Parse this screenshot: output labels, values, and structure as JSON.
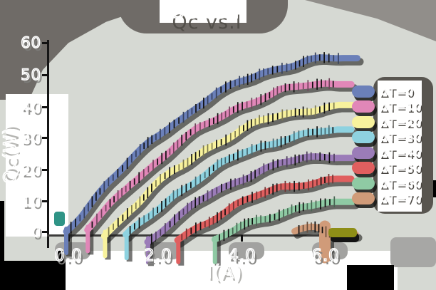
{
  "title": "Qc vs.I",
  "axes": {
    "xlabel": "I(A)",
    "ylabel": "Qc(W)",
    "x_tick_labels": [
      "0.0",
      "2.0",
      "4.0",
      "6.0"
    ],
    "y_tick_labels": [
      "60",
      "50",
      "40",
      "30",
      "20",
      "10",
      "0"
    ]
  },
  "colors": {
    "background": "#d6d9d3",
    "shadow_dark": "#6f6b67",
    "shadow_mid": "#a2a2a0",
    "artifact_olive": "#8e8e17",
    "artifact_teal": "#2f9486"
  },
  "chart_data": {
    "type": "line",
    "title": "Qc vs.I",
    "xlabel": "I(A)",
    "ylabel": "Qc(W)",
    "xlim": [
      0,
      6.6
    ],
    "ylim": [
      0,
      60
    ],
    "x_ticks": [
      0.0,
      2.0,
      4.0,
      6.0
    ],
    "y_ticks": [
      0,
      10,
      20,
      30,
      40,
      50,
      60
    ],
    "grid": false,
    "legend_position": "right",
    "style": "xkcd-sketch, thick strokes with error ticks and drop shadows",
    "series": [
      {
        "name": "ΔT=0",
        "color": "#6b80b9",
        "points": [
          [
            0,
            0
          ],
          [
            0.5,
            8.3
          ],
          [
            1,
            15.9
          ],
          [
            1.5,
            22.8
          ],
          [
            2,
            29.0
          ],
          [
            2.5,
            34.6
          ],
          [
            3,
            39.5
          ],
          [
            3.5,
            43.7
          ],
          [
            4,
            47.3
          ],
          [
            4.5,
            50.2
          ],
          [
            5,
            52.4
          ],
          [
            5.5,
            53.9
          ],
          [
            6,
            54.8
          ],
          [
            6.4,
            55.1
          ]
        ]
      },
      {
        "name": "ΔT=10",
        "color": "#e187b8",
        "points": [
          [
            0.5,
            0.6
          ],
          [
            1,
            8.2
          ],
          [
            1.5,
            15.1
          ],
          [
            2,
            21.3
          ],
          [
            2.5,
            26.9
          ],
          [
            3,
            31.8
          ],
          [
            3.5,
            36.0
          ],
          [
            4,
            39.6
          ],
          [
            4.5,
            42.5
          ],
          [
            5,
            44.7
          ],
          [
            5.5,
            46.2
          ],
          [
            6,
            47.1
          ],
          [
            6.3,
            47.4
          ]
        ]
      },
      {
        "name": "ΔT=20",
        "color": "#f8f29d",
        "points": [
          [
            0.9,
            -1.0
          ],
          [
            1.5,
            7.4
          ],
          [
            2,
            13.6
          ],
          [
            2.5,
            19.2
          ],
          [
            3,
            24.1
          ],
          [
            3.5,
            28.3
          ],
          [
            4,
            31.9
          ],
          [
            4.5,
            34.8
          ],
          [
            5,
            37.0
          ],
          [
            5.5,
            38.5
          ],
          [
            6,
            39.4
          ],
          [
            6.3,
            39.7
          ]
        ]
      },
      {
        "name": "ΔT=30",
        "color": "#8ed2e0",
        "points": [
          [
            1.4,
            -1.6
          ],
          [
            2,
            5.9
          ],
          [
            2.5,
            11.5
          ],
          [
            3,
            16.4
          ],
          [
            3.5,
            20.6
          ],
          [
            4,
            24.2
          ],
          [
            4.5,
            27.1
          ],
          [
            5,
            29.3
          ],
          [
            5.5,
            30.8
          ],
          [
            6,
            31.7
          ],
          [
            6.3,
            32.0
          ]
        ]
      },
      {
        "name": "ΔT=40",
        "color": "#9b7cb8",
        "points": [
          [
            1.9,
            -3.0
          ],
          [
            2.5,
            3.8
          ],
          [
            3,
            8.7
          ],
          [
            3.5,
            12.9
          ],
          [
            4,
            16.5
          ],
          [
            4.5,
            19.4
          ],
          [
            5,
            21.6
          ],
          [
            5.5,
            23.1
          ],
          [
            6,
            24.0
          ],
          [
            6.3,
            24.2
          ]
        ]
      },
      {
        "name": "ΔT=50",
        "color": "#e05f5f",
        "points": [
          [
            2.6,
            -2.9
          ],
          [
            3,
            1.0
          ],
          [
            3.5,
            5.2
          ],
          [
            4,
            8.8
          ],
          [
            4.5,
            11.7
          ],
          [
            5,
            13.9
          ],
          [
            5.5,
            15.4
          ],
          [
            6,
            16.3
          ],
          [
            6.3,
            16.6
          ]
        ]
      },
      {
        "name": "ΔT=60",
        "color": "#8fcaa4",
        "points": [
          [
            3.45,
            -2.9
          ],
          [
            4,
            1.1
          ],
          [
            4.5,
            4.0
          ],
          [
            5,
            6.2
          ],
          [
            5.5,
            7.7
          ],
          [
            6,
            8.6
          ],
          [
            6.3,
            8.9
          ]
        ]
      },
      {
        "name": "ΔT=70",
        "color": "#d09b79",
        "points": [
          [
            5.3,
            -0.5
          ],
          [
            5.6,
            1.0
          ],
          [
            5.8,
            1.6
          ],
          [
            6,
            0.8
          ],
          [
            6.2,
            -0.3
          ],
          [
            6.4,
            -0.6
          ]
        ]
      }
    ]
  }
}
